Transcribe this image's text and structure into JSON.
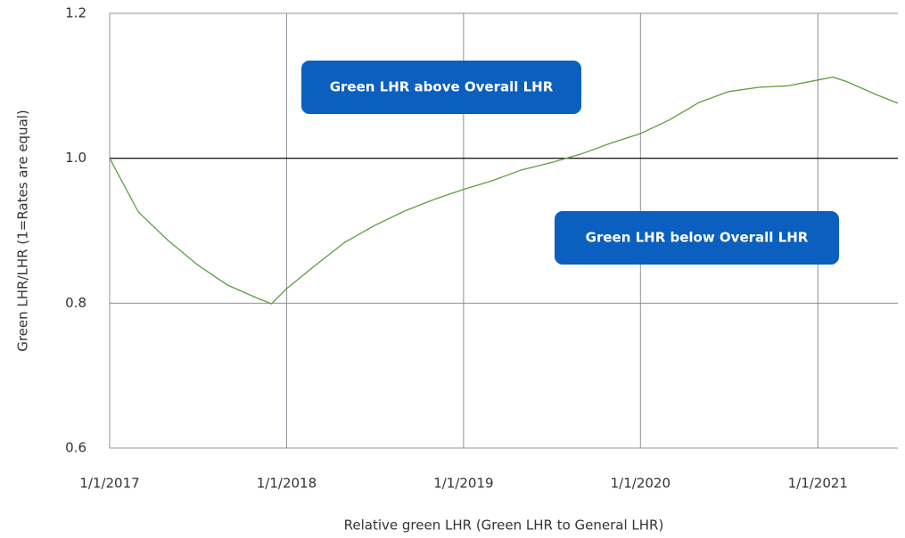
{
  "chart_data": {
    "type": "line",
    "x_label": "Relative green LHR (Green LHR to General LHR)",
    "y_label": "Green LHR/LHR (1=Rates are equal)",
    "x": [
      "2017-01-01",
      "2017-03-01",
      "2017-05-01",
      "2017-07-01",
      "2017-09-01",
      "2017-11-01",
      "2017-12-01",
      "2018-01-01",
      "2018-03-01",
      "2018-05-01",
      "2018-07-01",
      "2018-09-01",
      "2018-11-01",
      "2019-01-01",
      "2019-03-01",
      "2019-05-01",
      "2019-07-01",
      "2019-09-01",
      "2019-11-01",
      "2020-01-01",
      "2020-03-01",
      "2020-05-01",
      "2020-07-01",
      "2020-09-01",
      "2020-11-01",
      "2021-01-01",
      "2021-02-01",
      "2021-03-01",
      "2021-05-01",
      "2021-06-15"
    ],
    "series": [
      {
        "color": "#5e9e3c",
        "values": [
          1.0,
          0.926,
          0.887,
          0.853,
          0.825,
          0.807,
          0.799,
          0.82,
          0.852,
          0.884,
          0.907,
          0.927,
          0.943,
          0.957,
          0.969,
          0.984,
          0.994,
          1.006,
          1.021,
          1.034,
          1.053,
          1.077,
          1.092,
          1.098,
          1.1,
          1.108,
          1.112,
          1.106,
          1.088,
          1.076
        ]
      }
    ],
    "reference_line": {
      "value": 1.0,
      "color": "#000000"
    },
    "annotations": [
      {
        "text": "Green LHR above Overall LHR",
        "color": "#0b5fbf"
      },
      {
        "text": "Green LHR below Overall LHR",
        "color": "#0b5fbf"
      }
    ],
    "xlim": [
      "2017-01-01",
      "2021-06-15"
    ],
    "xticks": [
      {
        "value": "2017-01-01",
        "label": "1/1/2017"
      },
      {
        "value": "2018-01-01",
        "label": "1/1/2018"
      },
      {
        "value": "2019-01-01",
        "label": "1/1/2019"
      },
      {
        "value": "2020-01-01",
        "label": "1/1/2020"
      },
      {
        "value": "2021-01-01",
        "label": "1/1/2021"
      }
    ],
    "ylim": [
      0.6,
      1.2
    ],
    "yticks": [
      {
        "value": 0.6,
        "label": "0.6"
      },
      {
        "value": 0.8,
        "label": "0.8"
      },
      {
        "value": 1.0,
        "label": "1.0"
      },
      {
        "value": 1.2,
        "label": "1.2"
      }
    ],
    "grid": true
  }
}
